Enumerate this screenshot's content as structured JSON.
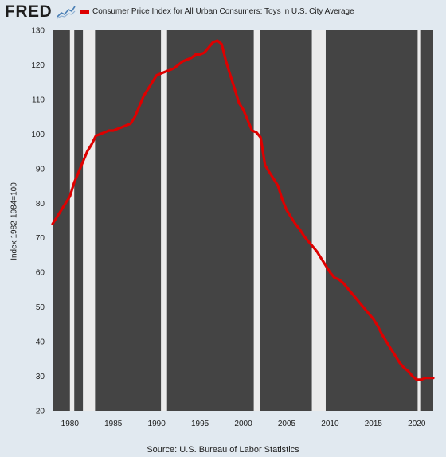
{
  "brand": {
    "logo_text": "FRED",
    "logo_icon": "line-graph-icon"
  },
  "legend": {
    "label": "Consumer Price Index for All Urban Consumers: Toys in U.S. City Average",
    "color": "#dd0000"
  },
  "source": "Source: U.S. Bureau of Labor Statistics",
  "colors": {
    "page_background": "#e1e9f0",
    "plot_background": "#444444",
    "recession_band": "#ebebeb",
    "series": "#dd0000"
  },
  "chart_data": {
    "type": "line",
    "title": "",
    "xlabel": "",
    "ylabel": "Index 1982-1984=100",
    "xlim": [
      1978.0,
      2021.9
    ],
    "ylim": [
      20,
      130
    ],
    "x_ticks": [
      1980,
      1985,
      1990,
      1995,
      2000,
      2005,
      2010,
      2015,
      2020
    ],
    "x_tick_labels": [
      "1980",
      "1985",
      "1990",
      "1995",
      "2000",
      "2005",
      "2010",
      "2015",
      "2020"
    ],
    "y_ticks": [
      20,
      30,
      40,
      50,
      60,
      70,
      80,
      90,
      100,
      110,
      120,
      130
    ],
    "y_tick_labels": [
      "20",
      "30",
      "40",
      "50",
      "60",
      "70",
      "80",
      "90",
      "100",
      "110",
      "120",
      "130"
    ],
    "grid": false,
    "legend_position": "top",
    "recessions": [
      {
        "start": 1980.0,
        "end": 1980.5
      },
      {
        "start": 1981.5,
        "end": 1982.9
      },
      {
        "start": 1990.5,
        "end": 1991.2
      },
      {
        "start": 2001.2,
        "end": 2001.9
      },
      {
        "start": 2007.9,
        "end": 2009.5
      },
      {
        "start": 2020.1,
        "end": 2020.4
      }
    ],
    "series": [
      {
        "name": "Consumer Price Index for All Urban Consumers: Toys in U.S. City Average",
        "color": "#dd0000",
        "x": [
          1978.0,
          1978.5,
          1979.0,
          1979.5,
          1980.0,
          1980.5,
          1981.0,
          1981.5,
          1982.0,
          1982.5,
          1983.0,
          1983.5,
          1984.0,
          1984.5,
          1985.0,
          1985.5,
          1986.0,
          1986.5,
          1987.0,
          1987.5,
          1988.0,
          1988.5,
          1989.0,
          1989.5,
          1990.0,
          1990.5,
          1991.0,
          1991.5,
          1992.0,
          1992.5,
          1993.0,
          1993.5,
          1994.0,
          1994.5,
          1995.0,
          1995.5,
          1996.0,
          1996.5,
          1997.0,
          1997.5,
          1998.0,
          1998.5,
          1999.0,
          1999.5,
          2000.0,
          2000.5,
          2001.0,
          2001.5,
          2002.0,
          2002.5,
          2003.0,
          2003.5,
          2004.0,
          2004.5,
          2005.0,
          2005.5,
          2006.0,
          2006.5,
          2007.0,
          2007.5,
          2008.0,
          2008.5,
          2009.0,
          2009.5,
          2010.0,
          2010.5,
          2011.0,
          2011.5,
          2012.0,
          2012.5,
          2013.0,
          2013.5,
          2014.0,
          2014.5,
          2015.0,
          2015.5,
          2016.0,
          2016.5,
          2017.0,
          2017.5,
          2018.0,
          2018.5,
          2019.0,
          2019.5,
          2020.0,
          2020.5,
          2021.0,
          2021.5,
          2021.9
        ],
        "y": [
          74,
          76,
          78,
          80,
          82,
          86,
          89,
          92,
          95,
          97,
          99.5,
          100,
          100.5,
          101,
          101,
          101.5,
          102,
          102.5,
          103,
          105,
          108,
          111,
          113,
          115,
          117,
          117.5,
          118,
          118.5,
          119,
          120,
          121,
          121.5,
          122,
          123,
          123,
          123.5,
          125,
          126.5,
          127,
          126,
          121,
          117,
          113,
          109,
          107,
          104,
          101,
          100.5,
          99,
          91,
          89,
          87,
          85,
          81,
          78,
          76,
          74,
          72.5,
          70.5,
          69,
          67.5,
          66,
          64,
          62,
          60,
          58.5,
          58,
          57,
          55.5,
          54,
          52.5,
          51,
          49.5,
          48,
          46.5,
          44.5,
          42,
          40,
          38,
          36,
          34,
          32.5,
          31.5,
          30,
          29,
          29,
          29.5,
          29.5,
          29.5
        ]
      }
    ]
  }
}
